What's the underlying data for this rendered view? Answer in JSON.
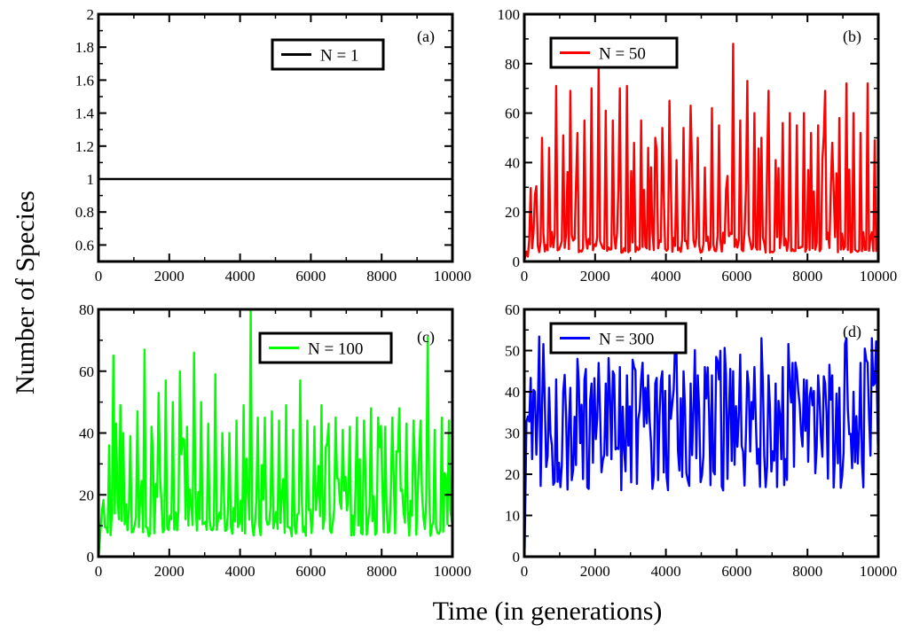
{
  "figure": {
    "ylabel": "Number of Species",
    "xlabel": "Time (in generations)"
  },
  "chart_data": [
    {
      "type": "line",
      "panel": "(a)",
      "xlim": [
        0,
        10000
      ],
      "ylim": [
        0.5,
        2
      ],
      "xticks": [
        0,
        2000,
        4000,
        6000,
        8000,
        10000
      ],
      "yticks": [
        0.6,
        0.8,
        1,
        1.2,
        1.4,
        1.6,
        1.8,
        2
      ],
      "ytick_labels": [
        "0.6",
        "0.8",
        "1",
        "1.2",
        "1.4",
        "1.6",
        "1.8",
        "2"
      ],
      "series": [
        {
          "name": "N = 1",
          "color": "#000000",
          "x": [
            0,
            10000
          ],
          "values": [
            1,
            1
          ]
        }
      ],
      "legend_position": "top-right"
    },
    {
      "type": "line",
      "panel": "(b)",
      "xlim": [
        0,
        10000
      ],
      "ylim": [
        0,
        100
      ],
      "xticks": [
        0,
        2000,
        4000,
        6000,
        8000,
        10000
      ],
      "yticks": [
        0,
        20,
        40,
        60,
        80,
        100
      ],
      "ytick_labels": [
        "0",
        "20",
        "40",
        "60",
        "80",
        "100"
      ],
      "series": [
        {
          "name": "N = 50",
          "color": "#ff0000",
          "x": [
            100,
            300,
            500,
            700,
            900,
            1100,
            1300,
            1500,
            1700,
            1900,
            2100,
            2300,
            2500,
            2700,
            2900,
            3100,
            3300,
            3500,
            3700,
            3900,
            4100,
            4300,
            4500,
            4700,
            4900,
            5100,
            5300,
            5500,
            5700,
            5900,
            6100,
            6300,
            6500,
            6700,
            6900,
            7100,
            7300,
            7500,
            7700,
            7900,
            8100,
            8300,
            8500,
            8700,
            8900,
            9100,
            9300,
            9500,
            9700,
            9900
          ],
          "values": [
            2,
            27,
            50,
            46,
            71,
            51,
            69,
            52,
            57,
            70,
            80,
            61,
            57,
            70,
            71,
            48,
            57,
            46,
            50,
            54,
            65,
            41,
            54,
            63,
            50,
            38,
            62,
            55,
            29,
            88,
            57,
            73,
            60,
            50,
            69,
            41,
            56,
            60,
            55,
            60,
            52,
            55,
            69,
            48,
            58,
            72,
            60,
            52,
            72,
            49
          ],
          "baseline": 6
        }
      ],
      "legend_position": "top-left"
    },
    {
      "type": "line",
      "panel": "(c)",
      "xlim": [
        0,
        10000
      ],
      "ylim": [
        0,
        80
      ],
      "xticks": [
        0,
        2000,
        4000,
        6000,
        8000,
        10000
      ],
      "yticks": [
        0,
        20,
        40,
        60,
        80
      ],
      "ytick_labels": [
        "0",
        "20",
        "40",
        "60",
        "80"
      ],
      "series": [
        {
          "name": "N = 100",
          "color": "#00ff00",
          "x": [
            100,
            300,
            500,
            700,
            900,
            1100,
            1300,
            1500,
            1700,
            1900,
            2100,
            2300,
            2500,
            2700,
            2900,
            3100,
            3300,
            3500,
            3700,
            3900,
            4100,
            4300,
            4500,
            4700,
            4900,
            5100,
            5300,
            5500,
            5700,
            5900,
            6100,
            6300,
            6500,
            6700,
            6900,
            7100,
            7300,
            7500,
            7700,
            7900,
            8100,
            8300,
            8500,
            8700,
            8900,
            9100,
            9300,
            9500,
            9700,
            9900
          ],
          "values": [
            15,
            36,
            43,
            40,
            39,
            47,
            67,
            42,
            53,
            57,
            50,
            60,
            42,
            66,
            50,
            43,
            59,
            40,
            40,
            44,
            49,
            80,
            45,
            45,
            47,
            44,
            49,
            41,
            57,
            44,
            42,
            49,
            43,
            45,
            41,
            42,
            45,
            44,
            48,
            45,
            42,
            45,
            48,
            43,
            44,
            44,
            71,
            41,
            45,
            44
          ],
          "baseline": 11
        }
      ],
      "legend_position": "top-right"
    },
    {
      "type": "line",
      "panel": "(d)",
      "xlim": [
        0,
        10000
      ],
      "ylim": [
        0,
        60
      ],
      "xticks": [
        0,
        2000,
        4000,
        6000,
        8000,
        10000
      ],
      "yticks": [
        0,
        10,
        20,
        30,
        40,
        50,
        60
      ],
      "ytick_labels": [
        "0",
        "10",
        "20",
        "30",
        "40",
        "50",
        "60"
      ],
      "series": [
        {
          "name": "N = 300",
          "color": "#0000ff",
          "x": [
            100,
            300,
            500,
            700,
            900,
            1100,
            1300,
            1500,
            1700,
            1900,
            2100,
            2300,
            2500,
            2700,
            2900,
            3100,
            3300,
            3500,
            3700,
            3900,
            4100,
            4300,
            4500,
            4700,
            4900,
            5100,
            5300,
            5500,
            5700,
            5900,
            6100,
            6300,
            6500,
            6700,
            6900,
            7100,
            7300,
            7500,
            7700,
            7900,
            8100,
            8300,
            8500,
            8700,
            8900,
            9100,
            9300,
            9500,
            9700,
            9900
          ],
          "values": [
            34,
            40,
            36,
            41,
            43,
            40,
            41,
            48,
            43,
            42,
            47,
            42,
            45,
            46,
            44,
            46,
            43,
            44,
            42,
            45,
            44,
            49,
            45,
            42,
            44,
            46,
            44,
            43,
            44,
            45,
            49,
            45,
            46,
            53,
            44,
            42,
            46,
            42,
            45,
            43,
            41,
            44,
            42,
            44,
            41,
            53,
            40,
            47,
            47,
            42
          ],
          "baseline": 27
        }
      ],
      "legend_position": "top-left"
    }
  ]
}
